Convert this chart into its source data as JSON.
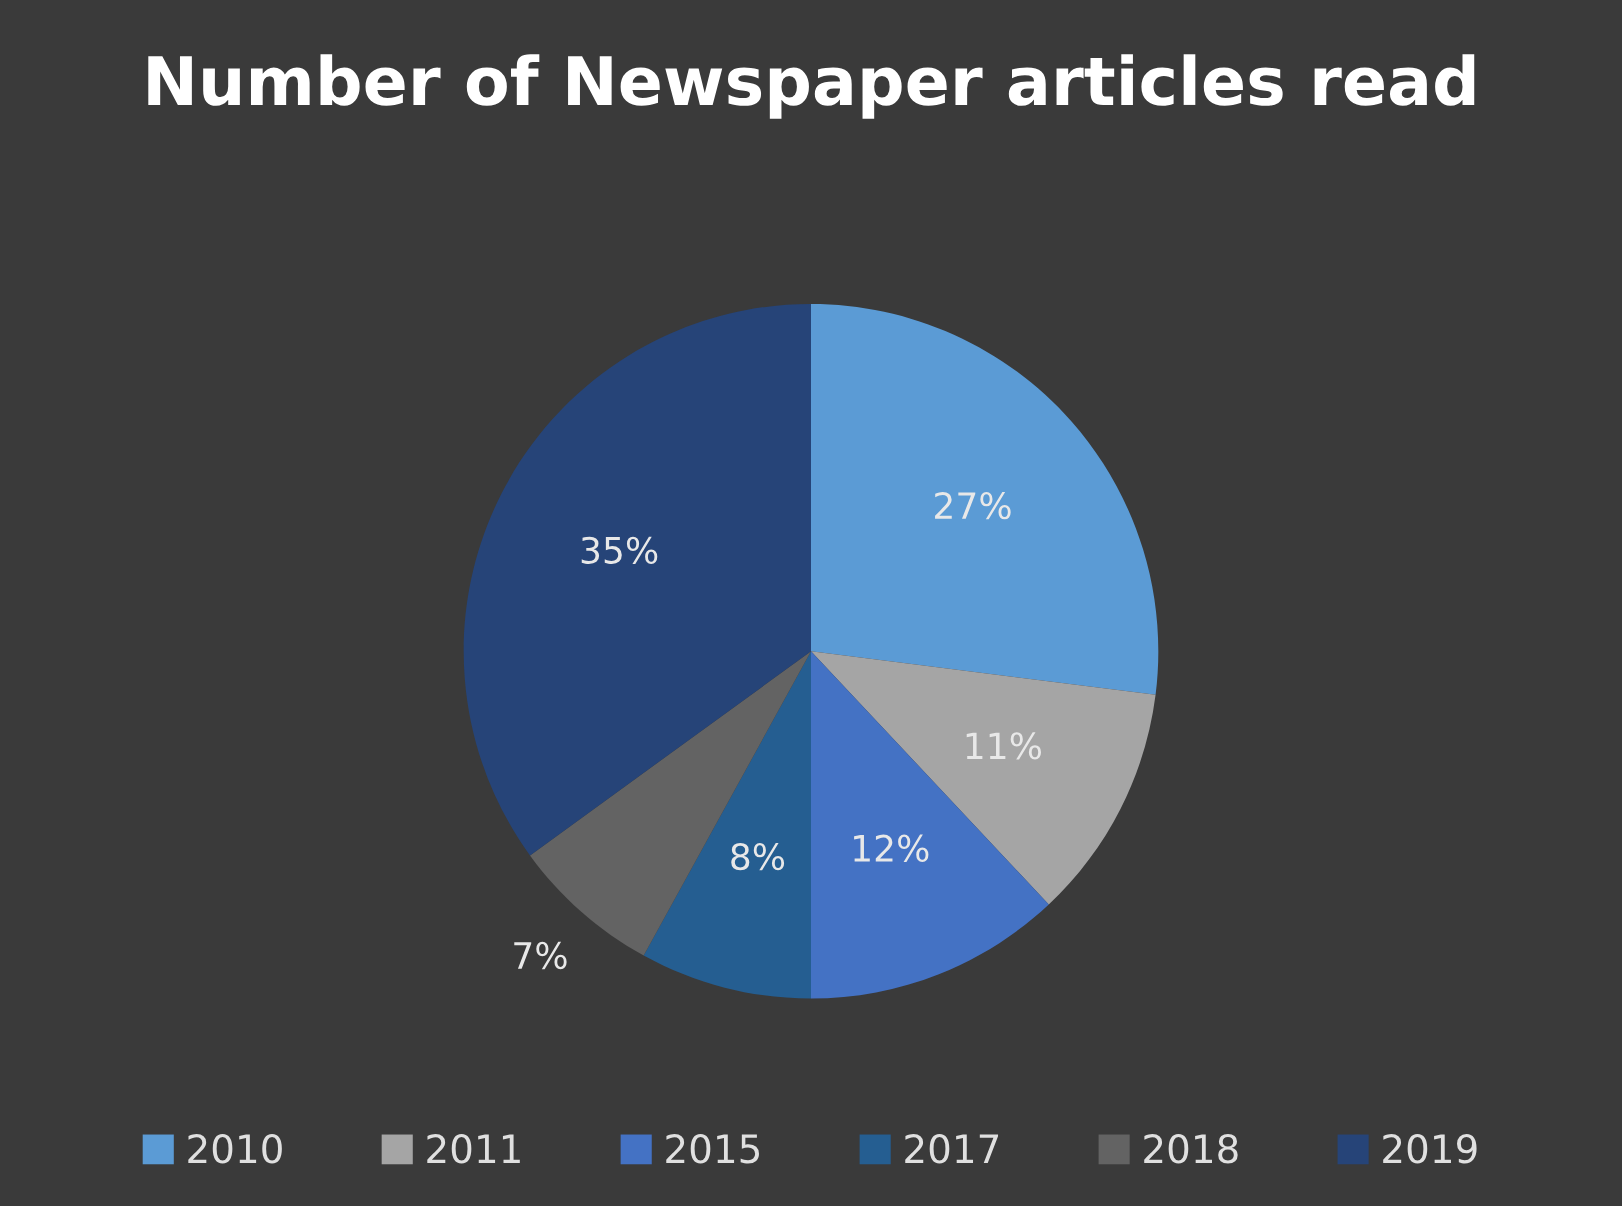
{
  "chart_data": {
    "type": "pie",
    "title": "Number of Newspaper articles read",
    "categories": [
      "2010",
      "2011",
      "2015",
      "2017",
      "2018",
      "2019"
    ],
    "values": [
      27,
      11,
      12,
      8,
      7,
      35
    ],
    "colors": [
      "#5b9bd5",
      "#a5a5a5",
      "#4472c4",
      "#255e91",
      "#636363",
      "#264478"
    ],
    "value_labels": [
      "27%",
      "11%",
      "12%",
      "8%",
      "7%",
      "35%"
    ],
    "legend": "bottom"
  }
}
